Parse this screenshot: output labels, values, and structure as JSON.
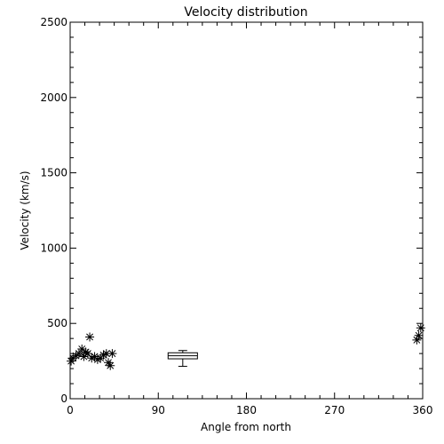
{
  "chart_data": {
    "type": "scatter",
    "title": "Velocity distribution",
    "xlabel": "Angle from north",
    "ylabel": "Velocity (km/s)",
    "xlim": [
      0,
      360
    ],
    "ylim": [
      0,
      2500
    ],
    "x_ticks": [
      0,
      90,
      180,
      270,
      360
    ],
    "y_ticks": [
      0,
      500,
      1000,
      1500,
      2000,
      2500
    ],
    "grid": false,
    "legend": false,
    "marker": "asterisk",
    "points": [
      {
        "x": 1,
        "y": 250
      },
      {
        "x": 3,
        "y": 270
      },
      {
        "x": 6,
        "y": 285
      },
      {
        "x": 9,
        "y": 300
      },
      {
        "x": 12,
        "y": 330
      },
      {
        "x": 14,
        "y": 280
      },
      {
        "x": 16,
        "y": 310
      },
      {
        "x": 18,
        "y": 300
      },
      {
        "x": 20,
        "y": 410
      },
      {
        "x": 22,
        "y": 270
      },
      {
        "x": 25,
        "y": 280
      },
      {
        "x": 28,
        "y": 260
      },
      {
        "x": 31,
        "y": 270
      },
      {
        "x": 34,
        "y": 290
      },
      {
        "x": 37,
        "y": 300
      },
      {
        "x": 39,
        "y": 240
      },
      {
        "x": 41,
        "y": 220
      },
      {
        "x": 43,
        "y": 300
      },
      {
        "x": 354,
        "y": 390
      },
      {
        "x": 356,
        "y": 420
      },
      {
        "x": 358,
        "y": 470
      }
    ],
    "boxplot": {
      "x_from": 100,
      "x_to": 130,
      "whisker_low": 215,
      "q1": 265,
      "median": 285,
      "q3": 305,
      "whisker_high": 320
    }
  }
}
